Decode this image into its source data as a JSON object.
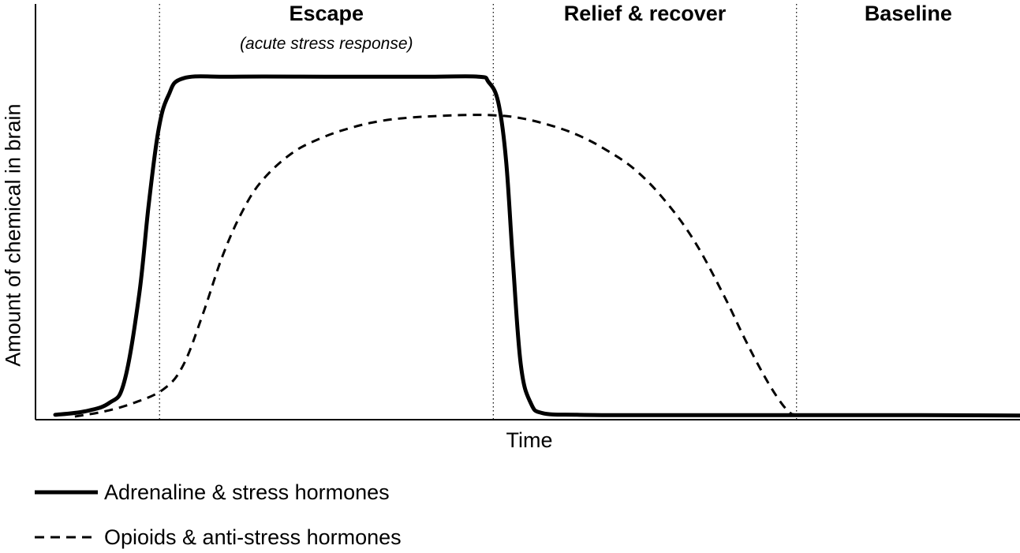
{
  "chart_data": {
    "type": "line",
    "title": "",
    "xlabel": "Time",
    "ylabel": "Amount of chemical in brain",
    "xlim": [
      0,
      100
    ],
    "ylim": [
      0,
      100
    ],
    "grid": false,
    "legend_position": "bottom-left",
    "phases": [
      {
        "label": "Escape",
        "sublabel": "(acute stress response)",
        "start": 12.6,
        "end": 46.5
      },
      {
        "label": "Relief & recover",
        "sublabel": "",
        "start": 46.5,
        "end": 77.3
      },
      {
        "label": "Baseline",
        "sublabel": "",
        "start": 77.3,
        "end": 100
      }
    ],
    "series": [
      {
        "name": "Adrenaline & stress hormones",
        "style": "solid",
        "x": [
          2,
          5,
          7.5,
          9,
          10.5,
          11.5,
          12.5,
          13.5,
          15,
          20,
          30,
          40,
          45,
          46,
          47,
          47.8,
          48.5,
          49.3,
          50.3,
          51.5,
          55,
          60,
          70,
          80,
          90,
          100
        ],
        "y": [
          0.5,
          1.5,
          4,
          10,
          35,
          62,
          84,
          94,
          99,
          99.5,
          99.5,
          99.5,
          99.5,
          98,
          92,
          75,
          45,
          15,
          4,
          1,
          0.5,
          0.4,
          0.4,
          0.4,
          0.4,
          0.3
        ]
      },
      {
        "name": "Opioids & anti-stress hormones",
        "style": "dashed",
        "x": [
          4,
          7,
          10,
          13,
          15,
          17,
          19,
          21,
          23,
          26,
          29,
          32,
          35,
          38,
          41,
          44,
          46.5,
          49,
          52,
          55,
          58,
          61,
          64,
          67,
          70,
          72,
          74,
          75.5,
          76.5,
          77.3,
          80,
          90,
          100
        ],
        "y": [
          0,
          1.5,
          4,
          8,
          15,
          30,
          47,
          60,
          69,
          77,
          81.5,
          84.5,
          86.5,
          87.5,
          88,
          88.3,
          88.2,
          87.5,
          85.5,
          82.5,
          78,
          72,
          63,
          51,
          35,
          23,
          12,
          5,
          1.5,
          0.5,
          0.4,
          0.3,
          0.3
        ]
      }
    ]
  }
}
